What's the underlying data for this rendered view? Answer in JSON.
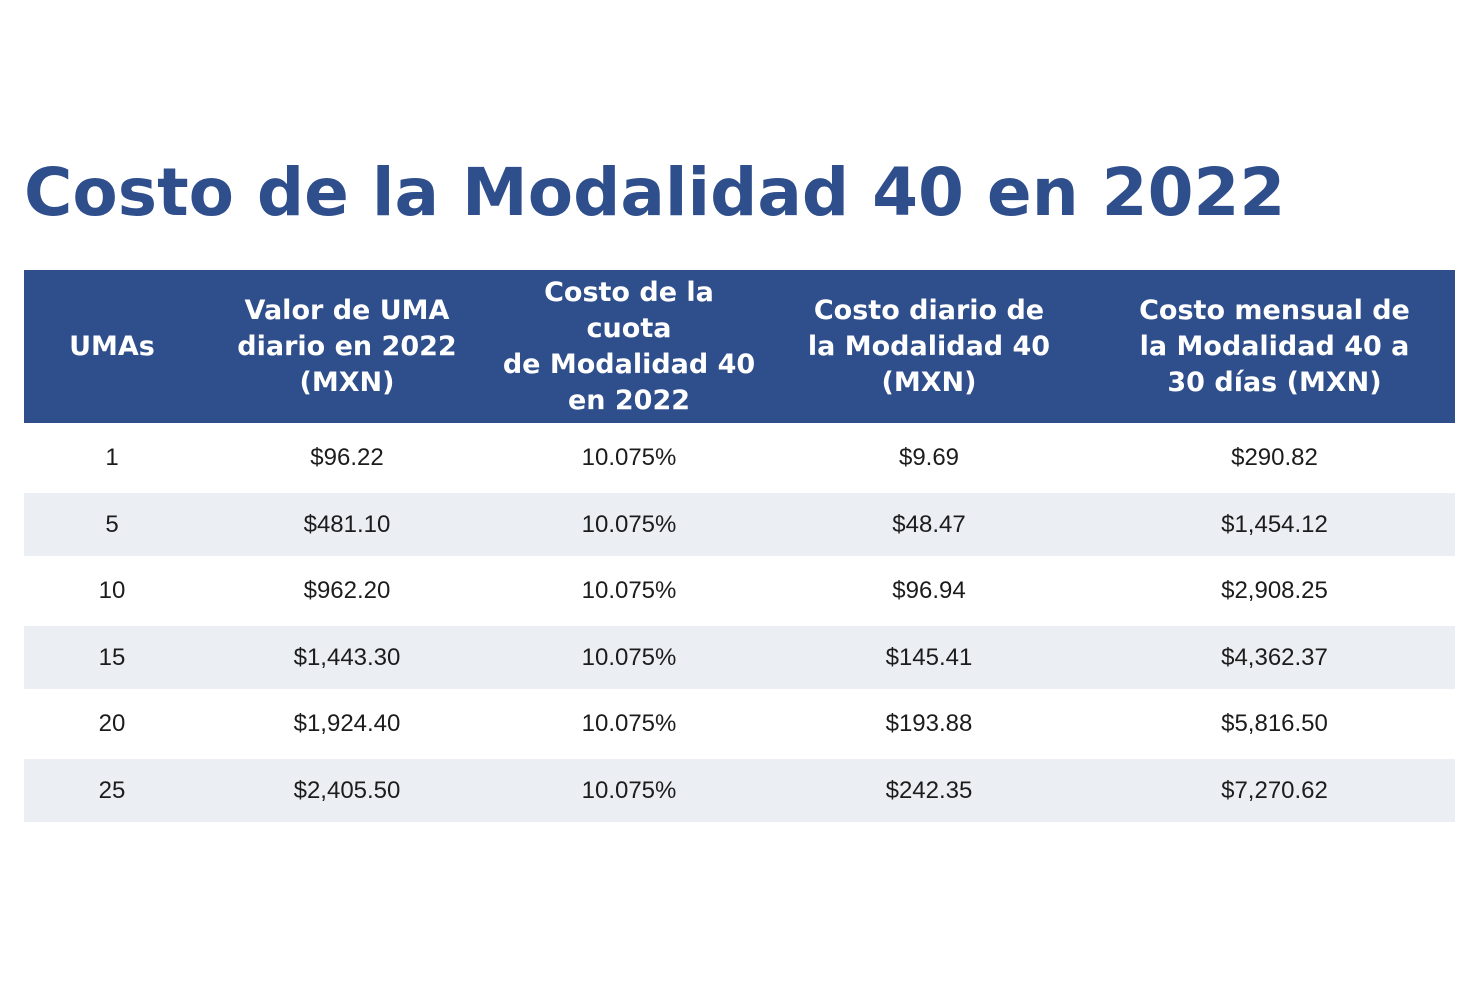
{
  "title": "Costo de la Modalidad 40 en 2022",
  "colors": {
    "title": "#2f4e8c",
    "header_bg": "#2f4e8c",
    "header_text": "#ffffff",
    "stripe": "#ebeff4"
  },
  "table": {
    "headers": [
      [
        "UMAs"
      ],
      [
        "Valor de UMA",
        "diario en 2022",
        "(MXN)"
      ],
      [
        "Costo de la cuota",
        "de Modalidad 40",
        "en 2022"
      ],
      [
        "Costo diario de",
        "la Modalidad 40",
        "(MXN)"
      ],
      [
        "Costo mensual de",
        "la Modalidad 40 a",
        "30 días (MXN)"
      ]
    ],
    "rows": [
      [
        "1",
        "$96.22",
        "10.075%",
        "$9.69",
        "$290.82"
      ],
      [
        "5",
        "$481.10",
        "10.075%",
        "$48.47",
        "$1,454.12"
      ],
      [
        "10",
        "$962.20",
        "10.075%",
        "$96.94",
        "$2,908.25"
      ],
      [
        "15",
        "$1,443.30",
        "10.075%",
        "$145.41",
        "$4,362.37"
      ],
      [
        "20",
        "$1,924.40",
        "10.075%",
        "$193.88",
        "$5,816.50"
      ],
      [
        "25",
        "$2,405.50",
        "10.075%",
        "$242.35",
        "$7,270.62"
      ]
    ]
  }
}
